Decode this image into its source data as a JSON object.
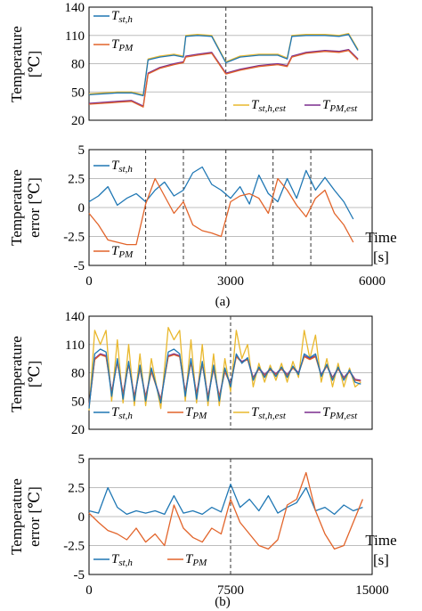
{
  "colors": {
    "blue": "#1f77b4",
    "orange": "#e2642a",
    "gold": "#e9b82d",
    "purple": "#7b2d8e",
    "grid": "#bdbdbd"
  },
  "chart_data": [
    {
      "id": "a-temp",
      "type": "line",
      "ylabel": [
        "Temperature",
        "[℃]"
      ],
      "ylim": [
        20,
        140
      ],
      "yticks": [
        20,
        50,
        80,
        110,
        140
      ],
      "xlim": [
        0,
        6000
      ],
      "grid": true,
      "vlines": [
        2900
      ],
      "legend": [
        {
          "main": "T",
          "sub": "st,h",
          "color": "#1f77b4"
        },
        {
          "main": "T",
          "sub": "PM",
          "color": "#e2642a"
        },
        {
          "main": "T",
          "sub": "st,h,est",
          "color": "#e9b82d"
        },
        {
          "main": "T",
          "sub": "PM,est",
          "color": "#7b2d8e"
        }
      ],
      "series": [
        {
          "color": "#e9b82d",
          "x": [
            0,
            300,
            600,
            900,
            1150,
            1250,
            1500,
            1800,
            2000,
            2050,
            2300,
            2600,
            2900,
            3200,
            3600,
            4000,
            4200,
            4300,
            4600,
            5000,
            5300,
            5500,
            5700
          ],
          "y": [
            48,
            49,
            50,
            50,
            47,
            85,
            88,
            90,
            88,
            110,
            111,
            110,
            82,
            88,
            90,
            90,
            86,
            110,
            111,
            111,
            110,
            112,
            95
          ]
        },
        {
          "color": "#1f77b4",
          "x": [
            0,
            300,
            600,
            900,
            1150,
            1250,
            1500,
            1800,
            2000,
            2050,
            2300,
            2600,
            2900,
            3200,
            3600,
            4000,
            4200,
            4300,
            4600,
            5000,
            5300,
            5500,
            5700
          ],
          "y": [
            47,
            48,
            49,
            49,
            46,
            84,
            87,
            89,
            87,
            109,
            110,
            109,
            81,
            87,
            89,
            89,
            85,
            109,
            110,
            110,
            109,
            111,
            94
          ]
        },
        {
          "color": "#7b2d8e",
          "x": [
            0,
            300,
            600,
            900,
            1150,
            1250,
            1500,
            1800,
            2000,
            2050,
            2300,
            2600,
            2900,
            3200,
            3600,
            4000,
            4200,
            4300,
            4600,
            5000,
            5300,
            5500,
            5700
          ],
          "y": [
            38,
            39,
            40,
            41,
            35,
            70,
            76,
            80,
            82,
            88,
            90,
            92,
            70,
            74,
            78,
            80,
            78,
            88,
            92,
            94,
            93,
            95,
            85
          ]
        },
        {
          "color": "#e2642a",
          "x": [
            0,
            300,
            600,
            900,
            1150,
            1250,
            1500,
            1800,
            2000,
            2050,
            2300,
            2600,
            2900,
            3200,
            3600,
            4000,
            4200,
            4300,
            4600,
            5000,
            5300,
            5500,
            5700
          ],
          "y": [
            37,
            38,
            39,
            40,
            34,
            69,
            75,
            79,
            81,
            87,
            89,
            91,
            69,
            73,
            77,
            79,
            77,
            87,
            91,
            93,
            92,
            94,
            84
          ]
        }
      ]
    },
    {
      "id": "a-err",
      "type": "line",
      "ylabel": [
        "Temperature",
        "error [℃]"
      ],
      "ylim": [
        -5,
        5
      ],
      "yticks": [
        -5,
        -2.5,
        0,
        2.5,
        5
      ],
      "yticklabels": [
        "-5",
        "-2.5",
        "0",
        "2.5",
        "5"
      ],
      "xlim": [
        0,
        6000
      ],
      "xticks": [
        0,
        3000,
        6000
      ],
      "xticklabels": [
        "0",
        "3000",
        "6000"
      ],
      "xlabel": [
        "Time",
        "[s]"
      ],
      "grid": true,
      "vlines": [
        1200,
        2000,
        2900,
        3900,
        4700
      ],
      "legend": [
        {
          "main": "T",
          "sub": "st,h",
          "color": "#1f77b4"
        },
        {
          "main": "T",
          "sub": "PM",
          "color": "#e2642a"
        }
      ],
      "series": [
        {
          "color": "#1f77b4",
          "x": [
            0,
            200,
            400,
            600,
            800,
            1000,
            1200,
            1400,
            1600,
            1800,
            2000,
            2200,
            2400,
            2600,
            2800,
            3000,
            3200,
            3400,
            3600,
            3800,
            4000,
            4200,
            4400,
            4600,
            4800,
            5000,
            5200,
            5400,
            5600
          ],
          "y": [
            0.5,
            1.0,
            1.8,
            0.2,
            0.8,
            1.2,
            0.5,
            1.5,
            2.2,
            1.0,
            1.5,
            3.0,
            3.5,
            2.0,
            1.5,
            0.8,
            1.8,
            0.3,
            2.8,
            1.2,
            0.5,
            2.5,
            0.8,
            3.2,
            1.5,
            2.6,
            1.5,
            0.5,
            -1.0
          ]
        },
        {
          "color": "#e2642a",
          "x": [
            0,
            200,
            400,
            600,
            800,
            1000,
            1200,
            1400,
            1600,
            1800,
            2000,
            2200,
            2400,
            2600,
            2800,
            3000,
            3200,
            3400,
            3600,
            3800,
            4000,
            4200,
            4400,
            4600,
            4800,
            5000,
            5200,
            5400,
            5600
          ],
          "y": [
            -0.5,
            -1.5,
            -2.8,
            -3.0,
            -3.2,
            -3.2,
            0.3,
            2.5,
            1.0,
            -0.5,
            0.5,
            -1.5,
            -2.0,
            -2.2,
            -2.5,
            0.5,
            1.0,
            1.2,
            0.8,
            -0.5,
            2.5,
            1.5,
            0.2,
            -0.8,
            0.8,
            1.5,
            -0.5,
            -1.5,
            -3.0
          ]
        }
      ]
    },
    {
      "id": "b-temp",
      "type": "line",
      "ylabel": [
        "Temperature",
        "[℃]"
      ],
      "ylim": [
        20,
        140
      ],
      "yticks": [
        20,
        50,
        80,
        110,
        140
      ],
      "xlim": [
        0,
        15000
      ],
      "grid": true,
      "vlines": [
        7500
      ],
      "legend": [
        {
          "main": "T",
          "sub": "st,h",
          "color": "#1f77b4"
        },
        {
          "main": "T",
          "sub": "PM",
          "color": "#e2642a"
        },
        {
          "main": "T",
          "sub": "st,h,est",
          "color": "#e9b82d"
        },
        {
          "main": "T",
          "sub": "PM,est",
          "color": "#7b2d8e"
        }
      ],
      "series": [
        {
          "color": "#e9b82d",
          "x": [
            0,
            300,
            600,
            900,
            1200,
            1500,
            1800,
            2100,
            2400,
            2700,
            3000,
            3300,
            3800,
            4200,
            4500,
            4800,
            5100,
            5400,
            5700,
            6000,
            6300,
            6600,
            6900,
            7200,
            7500,
            7800,
            8100,
            8400,
            8700,
            9000,
            9300,
            9600,
            9900,
            10200,
            10500,
            10800,
            11100,
            11400,
            11700,
            12000,
            12300,
            12600,
            12900,
            13200,
            13500,
            13800,
            14100,
            14400
          ],
          "y": [
            40,
            125,
            110,
            125,
            50,
            115,
            48,
            110,
            45,
            100,
            45,
            95,
            42,
            128,
            115,
            125,
            50,
            115,
            48,
            110,
            45,
            100,
            45,
            95,
            60,
            125,
            95,
            110,
            65,
            90,
            70,
            88,
            72,
            90,
            70,
            92,
            75,
            125,
            95,
            120,
            70,
            95,
            65,
            90,
            65,
            85,
            65,
            70
          ]
        },
        {
          "color": "#7b2d8e",
          "x": [
            0,
            300,
            600,
            900,
            1200,
            1500,
            1800,
            2100,
            2400,
            2700,
            3000,
            3300,
            3800,
            4200,
            4500,
            4800,
            5100,
            5400,
            5700,
            6000,
            6300,
            6600,
            6900,
            7200,
            7500,
            7800,
            8100,
            8400,
            8700,
            9000,
            9300,
            9600,
            9900,
            10200,
            10500,
            10800,
            11100,
            11400,
            11700,
            12000,
            12300,
            12600,
            12900,
            13200,
            13500,
            13800,
            14100,
            14400
          ],
          "y": [
            45,
            95,
            100,
            98,
            60,
            92,
            58,
            90,
            55,
            85,
            55,
            82,
            52,
            98,
            100,
            98,
            60,
            92,
            58,
            90,
            55,
            85,
            55,
            82,
            68,
            98,
            92,
            95,
            75,
            85,
            78,
            84,
            79,
            85,
            78,
            86,
            80,
            98,
            95,
            98,
            78,
            88,
            75,
            85,
            75,
            82,
            73,
            72
          ]
        },
        {
          "color": "#e2642a",
          "x": [
            0,
            300,
            600,
            900,
            1200,
            1500,
            1800,
            2100,
            2400,
            2700,
            3000,
            3300,
            3800,
            4200,
            4500,
            4800,
            5100,
            5400,
            5700,
            6000,
            6300,
            6600,
            6900,
            7200,
            7500,
            7800,
            8100,
            8400,
            8700,
            9000,
            9300,
            9600,
            9900,
            10200,
            10500,
            10800,
            11100,
            11400,
            11700,
            12000,
            12300,
            12600,
            12900,
            13200,
            13500,
            13800,
            14100,
            14400
          ],
          "y": [
            44,
            94,
            99,
            97,
            59,
            91,
            57,
            89,
            54,
            84,
            54,
            81,
            51,
            97,
            99,
            97,
            59,
            91,
            57,
            89,
            54,
            84,
            54,
            81,
            67,
            97,
            91,
            94,
            74,
            84,
            77,
            83,
            78,
            84,
            77,
            85,
            79,
            97,
            94,
            97,
            77,
            87,
            74,
            84,
            74,
            81,
            72,
            71
          ]
        },
        {
          "color": "#1f77b4",
          "x": [
            0,
            300,
            600,
            900,
            1200,
            1500,
            1800,
            2100,
            2400,
            2700,
            3000,
            3300,
            3800,
            4200,
            4500,
            4800,
            5100,
            5400,
            5700,
            6000,
            6300,
            6600,
            6900,
            7200,
            7500,
            7800,
            8100,
            8400,
            8700,
            9000,
            9300,
            9600,
            9900,
            10200,
            10500,
            10800,
            11100,
            11400,
            11700,
            12000,
            12300,
            12600,
            12900,
            13200,
            13500,
            13800,
            14100,
            14400
          ],
          "y": [
            42,
            100,
            105,
            102,
            55,
            95,
            52,
            92,
            50,
            88,
            50,
            85,
            48,
            102,
            105,
            100,
            55,
            95,
            52,
            92,
            50,
            88,
            50,
            85,
            65,
            100,
            90,
            96,
            72,
            86,
            75,
            85,
            76,
            86,
            75,
            87,
            78,
            100,
            96,
            100,
            76,
            89,
            72,
            86,
            72,
            83,
            70,
            68
          ]
        }
      ]
    },
    {
      "id": "b-err",
      "type": "line",
      "ylabel": [
        "Temperature",
        "error [℃]"
      ],
      "ylim": [
        -5,
        5
      ],
      "yticks": [
        -5,
        -2.5,
        0,
        2.5,
        5
      ],
      "yticklabels": [
        "-5",
        "-2.5",
        "0",
        "2.5",
        "5"
      ],
      "xlim": [
        0,
        15000
      ],
      "xticks": [
        0,
        7500,
        15000
      ],
      "xticklabels": [
        "0",
        "7500",
        "15000"
      ],
      "xlabel": [
        "Time",
        "[s]"
      ],
      "grid": true,
      "vlines": [
        7500
      ],
      "legend": [
        {
          "main": "T",
          "sub": "st,h",
          "color": "#1f77b4"
        },
        {
          "main": "T",
          "sub": "PM",
          "color": "#e2642a"
        }
      ],
      "series": [
        {
          "color": "#1f77b4",
          "x": [
            0,
            500,
            1000,
            1500,
            2000,
            2500,
            3000,
            3500,
            4000,
            4500,
            5000,
            5500,
            6000,
            6500,
            7000,
            7500,
            8000,
            8500,
            9000,
            9500,
            10000,
            10500,
            11000,
            11500,
            12000,
            12500,
            13000,
            13500,
            14000,
            14500
          ],
          "y": [
            0.5,
            0.3,
            2.5,
            0.8,
            0.2,
            0.5,
            0.3,
            0.5,
            0.2,
            1.8,
            0.3,
            0.5,
            0.2,
            0.8,
            0.4,
            2.8,
            0.8,
            1.5,
            0.5,
            1.8,
            0.3,
            0.8,
            1.2,
            2.5,
            0.5,
            0.8,
            0.2,
            1.0,
            0.5,
            0.8
          ]
        },
        {
          "color": "#e2642a",
          "x": [
            0,
            500,
            1000,
            1500,
            2000,
            2500,
            3000,
            3500,
            4000,
            4500,
            5000,
            5500,
            6000,
            6500,
            7000,
            7500,
            8000,
            8500,
            9000,
            9500,
            10000,
            10500,
            11000,
            11500,
            12000,
            12500,
            13000,
            13500,
            14000,
            14500
          ],
          "y": [
            0.3,
            -0.5,
            -1.2,
            -1.5,
            -2.0,
            -1.0,
            -2.2,
            -1.5,
            -2.5,
            1.0,
            -1.0,
            -1.8,
            -2.2,
            -1.0,
            -1.5,
            1.5,
            -0.5,
            -1.5,
            -2.5,
            -2.8,
            -2.0,
            1.0,
            1.5,
            3.8,
            0.5,
            -1.5,
            -2.8,
            -2.5,
            -0.5,
            1.5
          ]
        }
      ]
    }
  ],
  "panel_labels": [
    "(a)",
    "(b)"
  ]
}
